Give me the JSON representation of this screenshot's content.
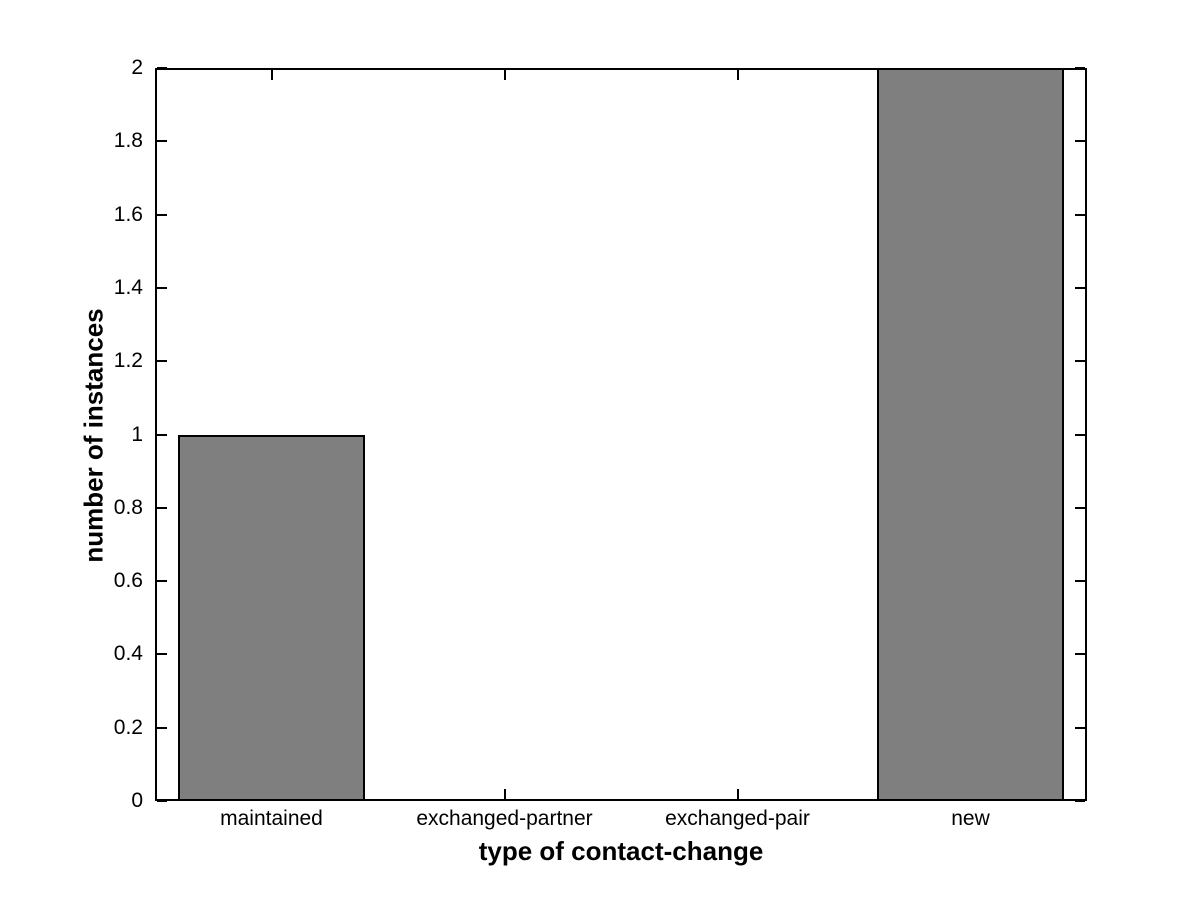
{
  "chart_data": {
    "type": "bar",
    "title": "",
    "xlabel": "type of contact-change",
    "ylabel": "number of instances",
    "categories": [
      "maintained",
      "exchanged-partner",
      "exchanged-pair",
      "new"
    ],
    "values": [
      1,
      0,
      0,
      2
    ],
    "yticks": [
      0,
      0.2,
      0.4,
      0.6,
      0.8,
      1,
      1.2,
      1.4,
      1.6,
      1.8,
      2
    ],
    "ylim": [
      0,
      2
    ],
    "bar_width_fraction": 0.8,
    "grid": false,
    "legend_position": "none",
    "bar_color": "#7f7f7f",
    "bar_edge_color": "#000000",
    "axis_color": "#000000",
    "background_color": "#ffffff"
  }
}
